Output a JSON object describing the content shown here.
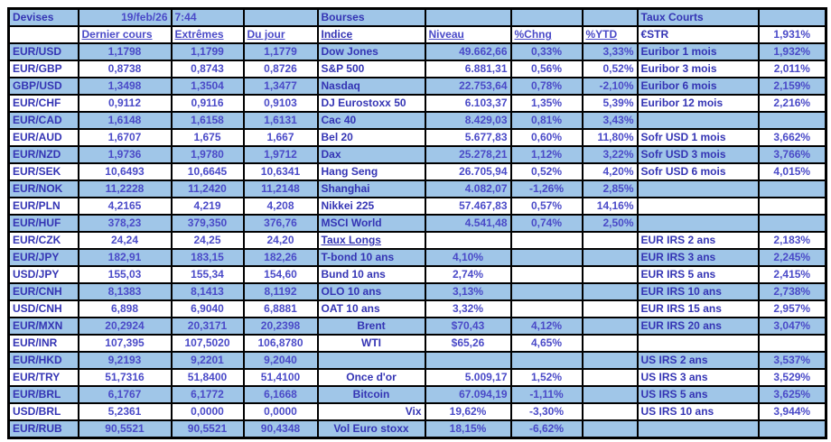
{
  "colors": {
    "row_blue": "#A0C6E8",
    "row_white": "#FFFFFF",
    "label_text": "#3434B4",
    "value_text": "#4A4AC8",
    "border": "#000000"
  },
  "grid": {
    "rows": [
      [
        "Devises",
        "19/feb/26",
        "7:44",
        "",
        "Bourses",
        "",
        "",
        "",
        "Taux Courts",
        ""
      ],
      [
        "",
        "Dernier cours",
        "Extrêmes",
        "Du jour",
        "Indice",
        "Niveau",
        "%Chng",
        "%YTD",
        "€STR",
        "1,931%"
      ],
      [
        "EUR/USD",
        "1,1798",
        "1,1799",
        "1,1779",
        "Dow Jones",
        "49.662,66",
        "0,33%",
        "3,33%",
        "Euribor 1 mois",
        "1,932%"
      ],
      [
        "EUR/GBP",
        "0,8738",
        "0,8743",
        "0,8726",
        "S&P 500",
        "6.881,31",
        "0,56%",
        "0,52%",
        "Euribor 3 mois",
        "2,011%"
      ],
      [
        "GBP/USD",
        "1,3498",
        "1,3504",
        "1,3477",
        "Nasdaq",
        "22.753,64",
        "0,78%",
        "-2,10%",
        "Euribor 6 mois",
        "2,159%"
      ],
      [
        "EUR/CHF",
        "0,9112",
        "0,9116",
        "0,9103",
        "DJ Eurostoxx 50",
        "6.103,37",
        "1,35%",
        "5,39%",
        "Euribor 12 mois",
        "2,216%"
      ],
      [
        "EUR/CAD",
        "1,6148",
        "1,6158",
        "1,6131",
        "Cac 40",
        "8.429,03",
        "0,81%",
        "3,43%",
        "",
        ""
      ],
      [
        "EUR/AUD",
        "1,6707",
        "1,675",
        "1,667",
        "Bel 20",
        "5.677,83",
        "0,60%",
        "11,80%",
        "Sofr USD 1 mois",
        "3,662%"
      ],
      [
        "EUR/NZD",
        "1,9736",
        "1,9780",
        "1,9712",
        "Dax",
        "25.278,21",
        "1,12%",
        "3,22%",
        "Sofr USD 3 mois",
        "3,766%"
      ],
      [
        "EUR/SEK",
        "10,6493",
        "10,6645",
        "10,6341",
        "Hang Seng",
        "26.705,94",
        "0,52%",
        "4,20%",
        "Sofr USD 6 mois",
        "4,015%"
      ],
      [
        "EUR/NOK",
        "11,2228",
        "11,2420",
        "11,2148",
        "Shanghai",
        "4.082,07",
        "-1,26%",
        "2,85%",
        "",
        ""
      ],
      [
        "EUR/PLN",
        "4,2165",
        "4,219",
        "4,208",
        "Nikkei 225",
        "57.467,83",
        "0,57%",
        "14,16%",
        "",
        ""
      ],
      [
        "EUR/HUF",
        "378,23",
        "379,350",
        "376,76",
        "MSCI World",
        "4.541,48",
        "0,74%",
        "2,50%",
        "",
        ""
      ],
      [
        "EUR/CZK",
        "24,24",
        "24,25",
        "24,20",
        "Taux Longs",
        "",
        "",
        "",
        "EUR IRS 2 ans",
        "2,183%"
      ],
      [
        "EUR/JPY",
        "182,91",
        "183,15",
        "182,26",
        "T-bond 10 ans",
        "4,10%",
        "",
        "",
        "EUR IRS 3 ans",
        "2,245%"
      ],
      [
        "USD/JPY",
        "155,03",
        "155,34",
        "154,60",
        "Bund 10 ans",
        "2,74%",
        "",
        "",
        "EUR IRS 5 ans",
        "2,415%"
      ],
      [
        "EUR/CNH",
        "8,1383",
        "8,1413",
        "8,1192",
        "OLO 10 ans",
        "3,13%",
        "",
        "",
        "EUR IRS 10 ans",
        "2,738%"
      ],
      [
        "USD/CNH",
        "6,898",
        "6,9040",
        "6,8881",
        "OAT 10 ans",
        "3,32%",
        "",
        "",
        "EUR IRS 15 ans",
        "2,957%"
      ],
      [
        "EUR/MXN",
        "20,2924",
        "20,3171",
        "20,2398",
        "Brent",
        "$70,43",
        "4,12%",
        "",
        "EUR IRS 20 ans",
        "3,047%"
      ],
      [
        "EUR/INR",
        "107,395",
        "107,5020",
        "106,8780",
        "WTI",
        "$65,26",
        "4,65%",
        "",
        "",
        ""
      ],
      [
        "EUR/HKD",
        "9,2193",
        "9,2201",
        "9,2040",
        "",
        "",
        "",
        "",
        "US IRS 2 ans",
        "3,537%"
      ],
      [
        "EUR/TRY",
        "51,7316",
        "51,8400",
        "51,4100",
        "Once d'or",
        "5.009,17",
        "1,52%",
        "",
        "US IRS 3 ans",
        "3,529%"
      ],
      [
        "EUR/BRL",
        "6,1767",
        "6,1772",
        "6,1668",
        "Bitcoin",
        "67.094,19",
        "-1,11%",
        "",
        "US IRS 5 ans",
        "3,625%"
      ],
      [
        "USD/BRL",
        "5,2361",
        "0,0000",
        "0,0000",
        "Vix",
        "19,62%",
        "-3,30%",
        "",
        "US IRS 10 ans",
        "3,944%"
      ],
      [
        "EUR/RUB",
        "90,5521",
        "90,5521",
        "90,4348",
        "Vol Euro stoxx",
        "18,15%",
        "-6,62%",
        "",
        "",
        ""
      ]
    ]
  }
}
